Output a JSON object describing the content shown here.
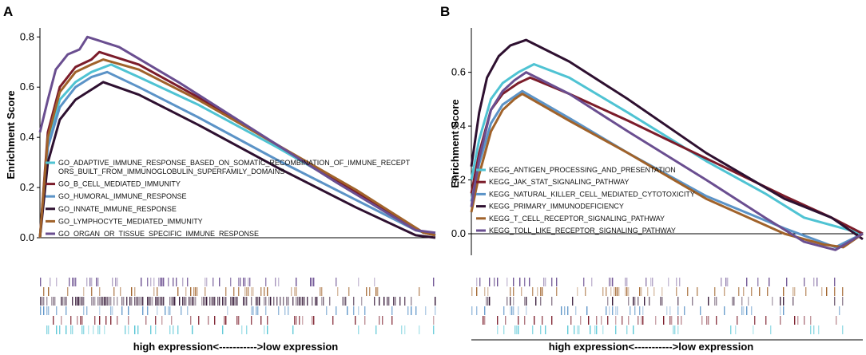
{
  "chart_data": [
    {
      "panel": "A",
      "type": "line",
      "ylabel": "Enrichment Score",
      "xlabel": "high expression<----------->low expression",
      "ylim": [
        0,
        0.82
      ],
      "yticks": [
        "0.0",
        "0.2",
        "0.4",
        "0.6",
        "0.8"
      ],
      "ytick_values": [
        0,
        0.2,
        0.4,
        0.6,
        0.8
      ],
      "legend_position": "center-left",
      "series": [
        {
          "name": "GO_ADAPTIVE_IMMUNE_RESPONSE_BASED_ON_SOMATIC_RECOMBINATION_OF_IMMUNE_RECEPTORS_BUILT_FROM_IMMUNOGLOBULIN_SUPERFAMILY_DOMAINS",
          "label_lines": [
            "GO_ADAPTIVE_IMMUNE_RESPONSE_BASED_ON_SOMATIC_RECOMBINATION_OF_IMMUNE_RECEPT",
            "ORS_BUILT_FROM_IMMUNOGLOBULIN_SUPERFAMILY_DOMAINS"
          ],
          "color": "#4fc3d3",
          "points": [
            [
              0,
              0
            ],
            [
              0.02,
              0.38
            ],
            [
              0.05,
              0.55
            ],
            [
              0.09,
              0.62
            ],
            [
              0.13,
              0.66
            ],
            [
              0.18,
              0.69
            ],
            [
              0.25,
              0.64
            ],
            [
              0.4,
              0.53
            ],
            [
              0.6,
              0.36
            ],
            [
              0.8,
              0.18
            ],
            [
              0.97,
              0.02
            ],
            [
              1,
              0.01
            ]
          ]
        },
        {
          "name": "GO_B_CELL_MEDIATED_IMMUNITY",
          "label_lines": [
            "GO_B_CELL_MEDIATED_IMMUNITY"
          ],
          "color": "#7b1c2a",
          "points": [
            [
              0,
              0
            ],
            [
              0.02,
              0.42
            ],
            [
              0.05,
              0.6
            ],
            [
              0.09,
              0.68
            ],
            [
              0.13,
              0.71
            ],
            [
              0.15,
              0.74
            ],
            [
              0.25,
              0.69
            ],
            [
              0.4,
              0.56
            ],
            [
              0.6,
              0.37
            ],
            [
              0.8,
              0.18
            ],
            [
              0.97,
              0.02
            ],
            [
              1,
              0.01
            ]
          ]
        },
        {
          "name": "GO_HUMORAL_IMMUNE_RESPONSE",
          "label_lines": [
            "GO_HUMORAL_IMMUNE_RESPONSE"
          ],
          "color": "#5b93c7",
          "points": [
            [
              0,
              0
            ],
            [
              0.02,
              0.36
            ],
            [
              0.05,
              0.52
            ],
            [
              0.09,
              0.6
            ],
            [
              0.13,
              0.64
            ],
            [
              0.17,
              0.66
            ],
            [
              0.25,
              0.6
            ],
            [
              0.4,
              0.48
            ],
            [
              0.6,
              0.31
            ],
            [
              0.8,
              0.15
            ],
            [
              0.95,
              0.03
            ],
            [
              1,
              0.01
            ]
          ]
        },
        {
          "name": "GO_INNATE_IMMUNE_RESPONSE",
          "label_lines": [
            "GO_INNATE_IMMUNE_RESPONSE"
          ],
          "color": "#2e1030",
          "points": [
            [
              0,
              0
            ],
            [
              0.02,
              0.3
            ],
            [
              0.05,
              0.47
            ],
            [
              0.09,
              0.55
            ],
            [
              0.13,
              0.59
            ],
            [
              0.16,
              0.62
            ],
            [
              0.25,
              0.57
            ],
            [
              0.4,
              0.45
            ],
            [
              0.6,
              0.28
            ],
            [
              0.8,
              0.12
            ],
            [
              0.95,
              0.01
            ],
            [
              1,
              0
            ]
          ]
        },
        {
          "name": "GO_LYMPHOCYTE_MEDIATED_IMMUNITY",
          "label_lines": [
            "GO_LYMPHOCYTE_MEDIATED_IMMUNITY"
          ],
          "color": "#a0622a",
          "points": [
            [
              0,
              0
            ],
            [
              0.02,
              0.4
            ],
            [
              0.05,
              0.58
            ],
            [
              0.09,
              0.66
            ],
            [
              0.13,
              0.69
            ],
            [
              0.16,
              0.71
            ],
            [
              0.25,
              0.67
            ],
            [
              0.4,
              0.55
            ],
            [
              0.6,
              0.37
            ],
            [
              0.8,
              0.19
            ],
            [
              0.97,
              0.02
            ],
            [
              1,
              0.01
            ]
          ]
        },
        {
          "name": "GO_ORGAN_OR_TISSUE_SPECIFIC_IMMUNE_RESPONSE",
          "label_lines": [
            "GO_ORGAN_OR_TISSUE_SPECIFIC_IMMUNE_RESPONSE"
          ],
          "color": "#6a4e90",
          "points": [
            [
              0,
              0.42
            ],
            [
              0.02,
              0.55
            ],
            [
              0.04,
              0.67
            ],
            [
              0.07,
              0.73
            ],
            [
              0.1,
              0.75
            ],
            [
              0.12,
              0.8
            ],
            [
              0.2,
              0.76
            ],
            [
              0.35,
              0.62
            ],
            [
              0.55,
              0.42
            ],
            [
              0.75,
              0.22
            ],
            [
              0.95,
              0.03
            ],
            [
              1,
              0.02
            ]
          ]
        }
      ]
    },
    {
      "panel": "B",
      "type": "line",
      "ylabel": "Enrichment Score",
      "xlabel": "high expression<----------->low expression",
      "ylim": [
        -0.08,
        0.75
      ],
      "yticks": [
        "0.0",
        "0.2",
        "0.4",
        "0.6"
      ],
      "ytick_values": [
        0,
        0.2,
        0.4,
        0.6
      ],
      "legend_position": "bottom-left",
      "series": [
        {
          "name": "KEGG_ANTIGEN_PROCESSING_AND_PRESENTATION",
          "label_lines": [
            "KEGG_ANTIGEN_PROCESSING_AND_PRESENTATION"
          ],
          "color": "#4fc3d3",
          "points": [
            [
              0,
              0.2
            ],
            [
              0.02,
              0.35
            ],
            [
              0.05,
              0.5
            ],
            [
              0.08,
              0.56
            ],
            [
              0.12,
              0.6
            ],
            [
              0.16,
              0.63
            ],
            [
              0.25,
              0.58
            ],
            [
              0.4,
              0.45
            ],
            [
              0.6,
              0.27
            ],
            [
              0.75,
              0.15
            ],
            [
              0.85,
              0.06
            ],
            [
              0.95,
              0.02
            ],
            [
              1,
              0
            ]
          ]
        },
        {
          "name": "KEGG_JAK_STAT_SIGNALING_PATHWAY",
          "label_lines": [
            "KEGG_JAK_STAT_SIGNALING_PATHWAY"
          ],
          "color": "#7b1c2a",
          "points": [
            [
              0,
              0.15
            ],
            [
              0.02,
              0.3
            ],
            [
              0.05,
              0.46
            ],
            [
              0.08,
              0.52
            ],
            [
              0.12,
              0.56
            ],
            [
              0.15,
              0.58
            ],
            [
              0.25,
              0.52
            ],
            [
              0.4,
              0.42
            ],
            [
              0.6,
              0.28
            ],
            [
              0.8,
              0.14
            ],
            [
              0.92,
              0.06
            ],
            [
              1,
              0
            ]
          ]
        },
        {
          "name": "KEGG_NATURAL_KILLER_CELL_MEDIATED_CYTOTOXICITY",
          "label_lines": [
            "KEGG_NATURAL_KILLER_CELL_MEDIATED_CYTOTOXICITY"
          ],
          "color": "#5b93c7",
          "points": [
            [
              0,
              0.12
            ],
            [
              0.02,
              0.26
            ],
            [
              0.05,
              0.41
            ],
            [
              0.08,
              0.48
            ],
            [
              0.11,
              0.51
            ],
            [
              0.13,
              0.53
            ],
            [
              0.25,
              0.43
            ],
            [
              0.4,
              0.3
            ],
            [
              0.6,
              0.14
            ],
            [
              0.8,
              0.02
            ],
            [
              0.93,
              -0.05
            ],
            [
              1,
              0
            ]
          ]
        },
        {
          "name": "KEGG_PRIMARY_IMMUNODEFICIENCY",
          "label_lines": [
            "KEGG_PRIMARY_IMMUNODEFICIENCY"
          ],
          "color": "#2e1030",
          "points": [
            [
              0,
              0.25
            ],
            [
              0.02,
              0.45
            ],
            [
              0.04,
              0.58
            ],
            [
              0.07,
              0.66
            ],
            [
              0.1,
              0.7
            ],
            [
              0.14,
              0.72
            ],
            [
              0.25,
              0.64
            ],
            [
              0.4,
              0.5
            ],
            [
              0.6,
              0.3
            ],
            [
              0.8,
              0.13
            ],
            [
              0.92,
              0.06
            ],
            [
              1,
              -0.02
            ]
          ]
        },
        {
          "name": "KEGG_T_CELL_RECEPTOR_SIGNALING_PATHWAY",
          "label_lines": [
            "KEGG_T_CELL_RECEPTOR_SIGNALING_PATHWAY"
          ],
          "color": "#a0622a",
          "points": [
            [
              0,
              0.08
            ],
            [
              0.02,
              0.22
            ],
            [
              0.05,
              0.38
            ],
            [
              0.08,
              0.46
            ],
            [
              0.11,
              0.5
            ],
            [
              0.13,
              0.52
            ],
            [
              0.25,
              0.42
            ],
            [
              0.4,
              0.3
            ],
            [
              0.6,
              0.13
            ],
            [
              0.8,
              0
            ],
            [
              0.9,
              -0.04
            ],
            [
              0.95,
              -0.05
            ],
            [
              1,
              0
            ]
          ]
        },
        {
          "name": "KEGG_TOLL_LIKE_RECEPTOR_SIGNALING_PATHWAY",
          "label_lines": [
            "KEGG_TOLL_LIKE_RECEPTOR_SIGNALING_PATHWAY"
          ],
          "color": "#6a4e90",
          "points": [
            [
              0,
              0.1
            ],
            [
              0.02,
              0.28
            ],
            [
              0.05,
              0.46
            ],
            [
              0.08,
              0.53
            ],
            [
              0.11,
              0.57
            ],
            [
              0.14,
              0.6
            ],
            [
              0.25,
              0.52
            ],
            [
              0.4,
              0.38
            ],
            [
              0.6,
              0.2
            ],
            [
              0.75,
              0.06
            ],
            [
              0.85,
              -0.03
            ],
            [
              0.93,
              -0.06
            ],
            [
              1,
              0
            ]
          ]
        }
      ]
    }
  ],
  "rugs": [
    {
      "panel": "A",
      "track_colors": [
        "#6a4e90",
        "#a0622a",
        "#2e1030",
        "#5b93c7",
        "#7b1c2a",
        "#4fc3d3"
      ]
    },
    {
      "panel": "B",
      "track_colors": [
        "#6a4e90",
        "#a0622a",
        "#2e1030",
        "#5b93c7",
        "#7b1c2a",
        "#4fc3d3"
      ]
    }
  ]
}
